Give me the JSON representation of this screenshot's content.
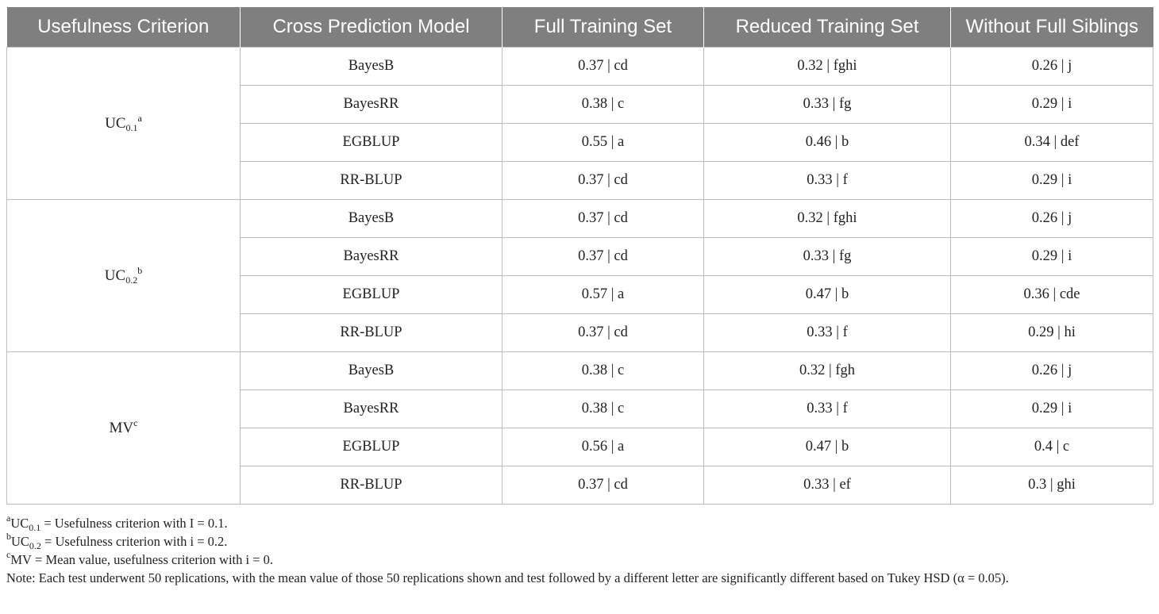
{
  "headers": [
    "Usefulness Criterion",
    "Cross Prediction Model",
    "Full Training Set",
    "Reduced Training Set",
    "Without Full Siblings"
  ],
  "groups": [
    {
      "criterion_base": "UC",
      "criterion_sub": "0.1",
      "criterion_sup": "a",
      "rows": [
        {
          "model": "BayesB",
          "full": "0.37 | cd",
          "reduced": "0.32 | fghi",
          "without": "0.26 | j"
        },
        {
          "model": "BayesRR",
          "full": "0.38 | c",
          "reduced": "0.33 | fg",
          "without": "0.29 | i"
        },
        {
          "model": "EGBLUP",
          "full": "0.55 | a",
          "reduced": "0.46 | b",
          "without": "0.34 | def"
        },
        {
          "model": "RR-BLUP",
          "full": "0.37 | cd",
          "reduced": "0.33 | f",
          "without": "0.29 | i"
        }
      ]
    },
    {
      "criterion_base": "UC",
      "criterion_sub": "0.2",
      "criterion_sup": "b",
      "rows": [
        {
          "model": "BayesB",
          "full": "0.37 | cd",
          "reduced": "0.32 | fghi",
          "without": "0.26 | j"
        },
        {
          "model": "BayesRR",
          "full": "0.37 | cd",
          "reduced": "0.33 | fg",
          "without": "0.29 | i"
        },
        {
          "model": "EGBLUP",
          "full": "0.57 | a",
          "reduced": "0.47 | b",
          "without": "0.36 | cde"
        },
        {
          "model": "RR-BLUP",
          "full": "0.37 | cd",
          "reduced": "0.33 | f",
          "without": "0.29 | hi"
        }
      ]
    },
    {
      "criterion_base": "MV",
      "criterion_sub": "",
      "criterion_sup": "c",
      "rows": [
        {
          "model": "BayesB",
          "full": "0.38 | c",
          "reduced": "0.32 | fgh",
          "without": "0.26 | j"
        },
        {
          "model": "BayesRR",
          "full": "0.38 | c",
          "reduced": "0.33 | f",
          "without": "0.29 | i"
        },
        {
          "model": "EGBLUP",
          "full": "0.56 | a",
          "reduced": "0.47 | b",
          "without": "0.4 | c"
        },
        {
          "model": "RR-BLUP",
          "full": "0.37 | cd",
          "reduced": "0.33 | ef",
          "without": "0.3 | ghi"
        }
      ]
    }
  ],
  "footnotes": [
    {
      "sup": "a",
      "base": "UC",
      "sub": "0.1",
      "text": " = Usefulness criterion with I = 0.1."
    },
    {
      "sup": "b",
      "base": "UC",
      "sub": "0.2",
      "text": " = Usefulness criterion with i = 0.2."
    },
    {
      "sup": "c",
      "base": "MV",
      "sub": "",
      "text": " = Mean value, usefulness criterion with i = 0."
    }
  ],
  "note": "Note: Each test underwent 50 replications, with the mean value of those 50 replications shown and test followed by a different letter are significantly different based on Tukey HSD (α = 0.05)."
}
